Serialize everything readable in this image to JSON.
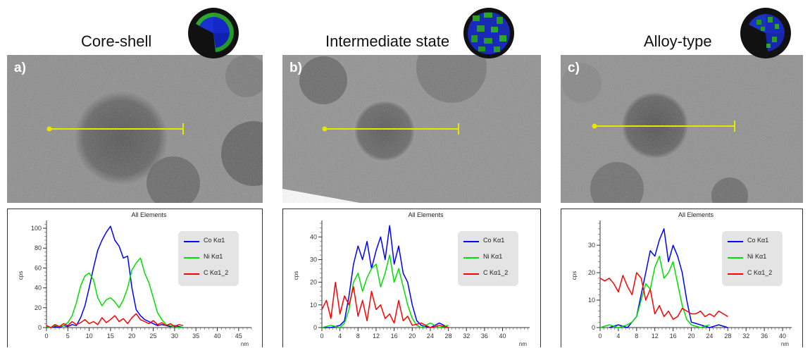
{
  "colors": {
    "co": "#0000ff",
    "ni": "#00e000",
    "c": "#ff0000",
    "line_scan": "#e6e600"
  },
  "chart_data": [
    {
      "type": "line",
      "panel_label": "a)",
      "heading": "Core-shell",
      "title": "All Elements",
      "ylabel": "cps",
      "xlabel": "nm",
      "xlim": [
        0,
        48
      ],
      "ylim": [
        0,
        105
      ],
      "xticks": [
        0,
        5,
        10,
        15,
        20,
        25,
        30,
        35,
        40,
        45
      ],
      "yticks": [
        0,
        20,
        40,
        60,
        80,
        100
      ],
      "legend": [
        "Co Kα1",
        "Ni Kα1",
        "C Kα1_2"
      ],
      "legend_placement": "top-right",
      "series": [
        {
          "name": "Co Kα1",
          "color": "#0000ff",
          "x": [
            0,
            1,
            2,
            3,
            4,
            5,
            6,
            7,
            8,
            9,
            10,
            11,
            12,
            13,
            14,
            15,
            16,
            17,
            18,
            19,
            20,
            21,
            22,
            23,
            24,
            25,
            26,
            27,
            28,
            29,
            30,
            31,
            32
          ],
          "y": [
            2,
            0,
            1,
            0,
            2,
            1,
            3,
            2,
            10,
            22,
            40,
            60,
            78,
            88,
            96,
            102,
            88,
            82,
            70,
            72,
            40,
            18,
            12,
            8,
            6,
            4,
            2,
            3,
            2,
            1,
            2,
            1,
            0
          ]
        },
        {
          "name": "Ni Kα1",
          "color": "#00e000",
          "x": [
            0,
            1,
            2,
            3,
            4,
            5,
            6,
            7,
            8,
            9,
            10,
            11,
            12,
            13,
            14,
            15,
            16,
            17,
            18,
            19,
            20,
            21,
            22,
            23,
            24,
            25,
            26,
            27,
            28,
            29,
            30,
            31,
            32
          ],
          "y": [
            1,
            0,
            2,
            1,
            2,
            5,
            12,
            25,
            42,
            52,
            55,
            48,
            30,
            22,
            28,
            30,
            26,
            20,
            28,
            40,
            58,
            65,
            70,
            55,
            45,
            30,
            15,
            8,
            3,
            2,
            1,
            0,
            0
          ]
        },
        {
          "name": "C Kα1_2",
          "color": "#ff0000",
          "x": [
            0,
            1,
            2,
            3,
            4,
            5,
            6,
            7,
            8,
            9,
            10,
            11,
            12,
            13,
            14,
            15,
            16,
            17,
            18,
            19,
            20,
            21,
            22,
            23,
            24,
            25,
            26,
            27,
            28,
            29,
            30,
            31,
            32
          ],
          "y": [
            2,
            0,
            3,
            1,
            4,
            2,
            6,
            3,
            5,
            8,
            4,
            6,
            3,
            10,
            5,
            8,
            12,
            6,
            9,
            4,
            10,
            14,
            8,
            6,
            4,
            7,
            3,
            5,
            2,
            4,
            1,
            3,
            2
          ]
        }
      ]
    },
    {
      "type": "line",
      "panel_label": "b)",
      "heading": "Intermediate state",
      "title": "All Elements",
      "ylabel": "cps",
      "xlabel": "nm",
      "xlim": [
        0,
        46
      ],
      "ylim": [
        0,
        46
      ],
      "xticks": [
        0,
        4,
        8,
        12,
        16,
        20,
        24,
        28,
        32,
        36,
        40
      ],
      "yticks": [
        0,
        10,
        20,
        30,
        40
      ],
      "legend": [
        "Co Kα1",
        "Ni Kα1",
        "C Kα1_2"
      ],
      "legend_placement": "top-right",
      "series": [
        {
          "name": "Co Kα1",
          "color": "#0000ff",
          "x": [
            0,
            2,
            4,
            5,
            6,
            7,
            8,
            9,
            10,
            11,
            12,
            13,
            14,
            15,
            16,
            17,
            18,
            19,
            20,
            21,
            22,
            24,
            26,
            28
          ],
          "y": [
            0,
            0,
            1,
            3,
            14,
            28,
            36,
            30,
            38,
            26,
            34,
            40,
            30,
            45,
            28,
            36,
            24,
            20,
            10,
            3,
            1,
            0,
            2,
            0
          ]
        },
        {
          "name": "Ni Kα1",
          "color": "#00e000",
          "x": [
            0,
            2,
            4,
            5,
            6,
            7,
            8,
            9,
            10,
            11,
            12,
            13,
            14,
            15,
            16,
            17,
            18,
            19,
            20,
            21,
            22,
            24,
            26,
            28
          ],
          "y": [
            0,
            1,
            0,
            2,
            8,
            20,
            24,
            16,
            22,
            26,
            28,
            18,
            24,
            32,
            20,
            26,
            18,
            10,
            4,
            1,
            0,
            2,
            0,
            1
          ]
        },
        {
          "name": "C Kα1_2",
          "color": "#ff0000",
          "x": [
            0,
            1,
            2,
            3,
            4,
            5,
            6,
            7,
            8,
            9,
            10,
            11,
            12,
            13,
            14,
            15,
            16,
            17,
            18,
            19,
            20,
            22,
            24,
            26,
            28
          ],
          "y": [
            8,
            12,
            4,
            20,
            6,
            14,
            10,
            18,
            5,
            12,
            3,
            16,
            8,
            10,
            4,
            6,
            2,
            12,
            3,
            5,
            1,
            2,
            0,
            1,
            0
          ]
        }
      ]
    },
    {
      "type": "line",
      "panel_label": "c)",
      "heading": "Alloy-type",
      "title": "All Elements",
      "ylabel": "cps",
      "xlabel": "nm",
      "xlim": [
        0,
        42
      ],
      "ylim": [
        0,
        38
      ],
      "xticks": [
        0,
        4,
        8,
        12,
        16,
        20,
        24,
        28,
        32,
        36,
        40
      ],
      "yticks": [
        0,
        10,
        20,
        30
      ],
      "legend": [
        "Co Kα1",
        "Ni Kα1",
        "C Kα1_2"
      ],
      "legend_placement": "top-right",
      "series": [
        {
          "name": "Co Kα1",
          "color": "#0000ff",
          "x": [
            2,
            4,
            6,
            7,
            8,
            9,
            10,
            11,
            12,
            13,
            14,
            15,
            16,
            17,
            18,
            19,
            20,
            22,
            24,
            26,
            28
          ],
          "y": [
            0,
            1,
            0,
            2,
            4,
            12,
            20,
            28,
            26,
            32,
            36,
            24,
            30,
            26,
            20,
            10,
            2,
            1,
            0,
            1,
            0
          ]
        },
        {
          "name": "Ni Kα1",
          "color": "#00e000",
          "x": [
            0,
            2,
            4,
            6,
            7,
            8,
            9,
            10,
            11,
            12,
            13,
            14,
            15,
            16,
            17,
            18,
            19,
            20,
            22,
            24
          ],
          "y": [
            0,
            1,
            0,
            1,
            2,
            4,
            10,
            16,
            14,
            22,
            26,
            18,
            20,
            24,
            16,
            8,
            3,
            1,
            0,
            1
          ]
        },
        {
          "name": "C Kα1_2",
          "color": "#ff0000",
          "x": [
            0,
            1,
            2,
            3,
            4,
            5,
            6,
            7,
            8,
            9,
            10,
            11,
            12,
            13,
            14,
            15,
            16,
            17,
            18,
            19,
            20,
            21,
            22,
            23,
            24,
            25,
            26,
            27,
            28
          ],
          "y": [
            18,
            17,
            18,
            16,
            13,
            19,
            15,
            12,
            20,
            18,
            10,
            14,
            5,
            8,
            4,
            6,
            3,
            4,
            7,
            6,
            5,
            5,
            6,
            4,
            5,
            4,
            6,
            5,
            4
          ]
        }
      ]
    }
  ]
}
